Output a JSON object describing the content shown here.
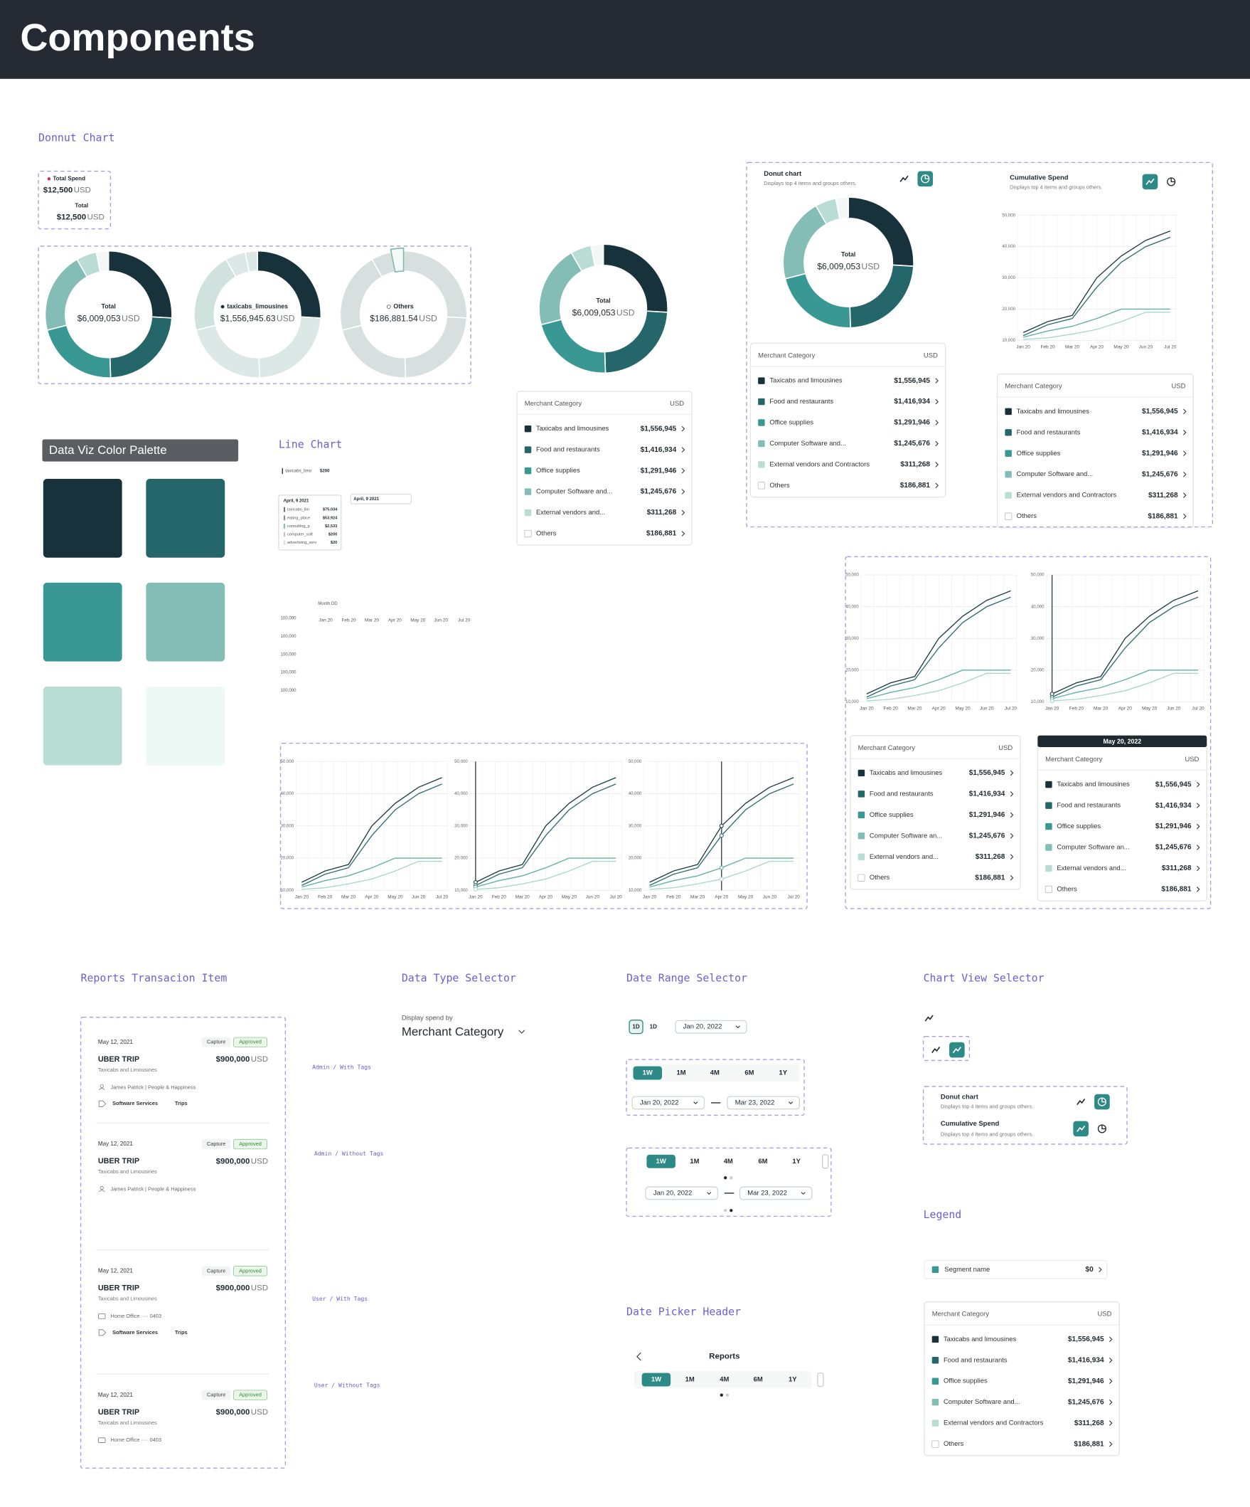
{
  "header": {
    "title": "Components"
  },
  "sections": {
    "donut": "Donnut Chart",
    "palette": "Data Viz Color Palette",
    "line": "Line Chart",
    "reports": "Reports Transacion Item",
    "data_type": "Data Type Selector",
    "date_range": "Date Range Selector",
    "chart_view": "Chart View Selector",
    "date_picker": "Date Picker  Header",
    "legend": "Legend"
  },
  "palette": [
    "#17323a",
    "#24666a",
    "#3a9894",
    "#83bdb6",
    "#b9ddd5",
    "#eef8f5"
  ],
  "total_spend_tooltip": {
    "label": "Total Spend",
    "value": "$12,500",
    "unit": "USD",
    "label2": "Total",
    "value2": "$12,500",
    "unit2": "USD"
  },
  "donuts": [
    {
      "label": "Total",
      "value": "$6,009,053",
      "unit": "USD"
    },
    {
      "label": "taxicabs_limousines",
      "value": "$1,556,945.63",
      "unit": "USD"
    },
    {
      "label": "Others",
      "value": "$186,881.54",
      "unit": "USD"
    },
    {
      "label": "Total",
      "value": "$6,009,053",
      "unit": "USD"
    },
    {
      "label": "Total",
      "value": "$6,009,053",
      "unit": "USD"
    }
  ],
  "merchant": {
    "title": "Merchant Category",
    "currency": "USD",
    "amounts": [
      1556945,
      1416934,
      1291946,
      1245676,
      311268,
      186881
    ],
    "amount_labels": [
      "$1,556,945",
      "$1,416,934",
      "$1,291,946",
      "$1,245,676",
      "$311,268",
      "$186,881"
    ]
  },
  "legend_names": {
    "full": [
      "Taxicabs and limousines",
      "Food and restaurants",
      "Office supplies",
      "Computer Software and...",
      "External vendors and Contractors",
      "Others"
    ],
    "short": [
      "Taxicabs and limousines",
      "Food and restaurants",
      "Office supplies",
      "Computer Software and...",
      "External vendors and...",
      "Others"
    ],
    "an": [
      "Taxicabs and limousines",
      "Food and restaurants",
      "Office supplies",
      "Computer Software an...",
      "External vendors and...",
      "Others"
    ]
  },
  "panel": {
    "donut_title": "Donut chart",
    "donut_sub": "Displays top 4 items and groups others.",
    "cum_title": "Cumulative Spend",
    "cum_sub": "Displays top 4 items and groups others."
  },
  "line_chart": {
    "x": [
      "Jan 20",
      "Feb 20",
      "Mar 20",
      "Apr 20",
      "May 20",
      "Jun 20",
      "Jul 20"
    ],
    "ylim": [
      10000,
      50000
    ],
    "yticks": [
      {
        "value": 10000,
        "label": "10,000"
      },
      {
        "value": 20000,
        "label": "20,000"
      },
      {
        "value": 30000,
        "label": "30,000"
      },
      {
        "value": 40000,
        "label": "40,000"
      },
      {
        "value": 50000,
        "label": "50,000"
      }
    ],
    "series": [
      {
        "color": "#1d3c42",
        "values": [
          12500,
          16000,
          18000,
          30000,
          37000,
          42000,
          45000
        ]
      },
      {
        "color": "#2f6e70",
        "values": [
          11500,
          15000,
          17000,
          27000,
          35000,
          40000,
          43000
        ]
      },
      {
        "color": "#5fb0a6",
        "values": [
          11000,
          13000,
          14500,
          17000,
          20000,
          20000,
          20000
        ]
      },
      {
        "color": "#a9d6cc",
        "values": [
          10300,
          10800,
          12000,
          13500,
          16000,
          19000,
          19000
        ]
      }
    ]
  },
  "hover_date": "May 20, 2022",
  "line_demo": {
    "legend_item": "taxicabs_limo",
    "legend_value": "$200",
    "tooltip_date": "April, 9 2021",
    "tooltip_rows": [
      {
        "name": "taxicabs_lim",
        "value": "$75,034"
      },
      {
        "name": "eating_place",
        "value": "$53,924"
      },
      {
        "name": "consulting_p",
        "value": "$2,533"
      },
      {
        "name": "computer_soft",
        "value": "$200"
      },
      {
        "name": "advertising_serv",
        "value": "$20"
      }
    ],
    "tooltip_date2": "April, 9 2021",
    "axis_title": "Month DD",
    "x": [
      "Jan 20",
      "Feb 20",
      "Mar 20",
      "Apr 20",
      "May 20",
      "Jun 20",
      "Jul 20"
    ],
    "y": [
      "100,000",
      "100,000",
      "100,000",
      "100,000",
      "100,000"
    ]
  },
  "reports": {
    "labels": [
      "Admin / With Tags",
      "Admin / Without Tags",
      "User / With Tags",
      "User / Without Tags"
    ],
    "items": [
      {
        "date": "May 12, 2021",
        "status1": "Capture",
        "status2": "Approved",
        "title": "UBER TRIP",
        "amount": "$900,000",
        "unit": "USD",
        "category": "Taxicabs and Limousines",
        "meta": "James Patrick  |  People & Happiness",
        "tags": [
          "Software Services",
          "Trips"
        ]
      },
      {
        "date": "May 12, 2021",
        "status1": "Capture",
        "status2": "Approved",
        "title": "UBER TRIP",
        "amount": "$900,000",
        "unit": "USD",
        "category": "Taxicabs and Limousines",
        "meta": "James Patrick  |  People & Happiness",
        "tags": []
      },
      {
        "date": "May 12, 2021",
        "status1": "Capture",
        "status2": "Approved",
        "title": "UBER TRIP",
        "amount": "$900,000",
        "unit": "USD",
        "category": "Taxicabs and Limousines",
        "meta": "Home Office   ···· 0403",
        "tags": [
          "Software Services",
          "Trips"
        ]
      },
      {
        "date": "May 12, 2021",
        "status1": "Capture",
        "status2": "Approved",
        "title": "UBER TRIP",
        "amount": "$900,000",
        "unit": "USD",
        "category": "Taxicabs and Limousines",
        "meta": "Home Office   ···· 0403",
        "tags": []
      }
    ]
  },
  "data_type": {
    "label": "Display spend by",
    "value": "Merchant Category"
  },
  "date_range": {
    "day_icon": "1D",
    "day": "1D",
    "date": "Jan 20, 2022",
    "periods": [
      "1W",
      "1M",
      "4M",
      "6M",
      "1Y"
    ],
    "start": "Jan 20, 2022",
    "end": "Mar 23, 2022"
  },
  "date_picker": {
    "title": "Reports"
  },
  "legend": {
    "segment": "Segment name",
    "value": "$0"
  }
}
